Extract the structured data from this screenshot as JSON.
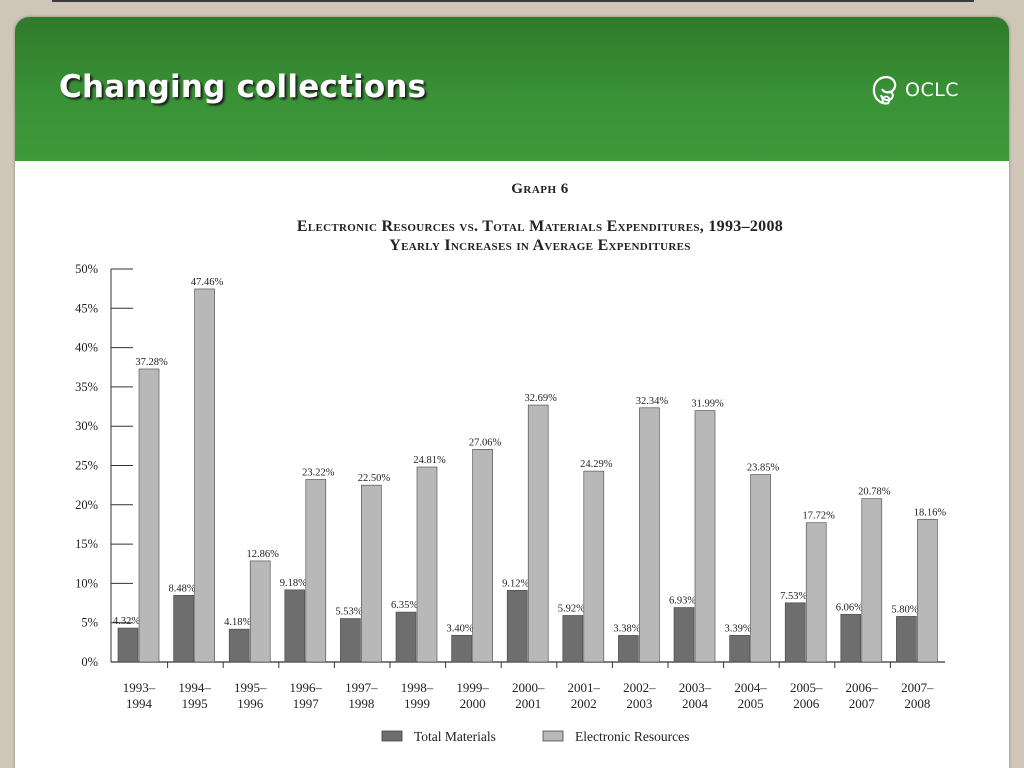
{
  "slide": {
    "title": "Changing collections",
    "logo_text": "OCLC",
    "logo_icon": "oclc-swirl-icon"
  },
  "colors": {
    "header": "#3a9137",
    "total_materials": "#6e6e6e",
    "electronic_resources": "#b8b8b8"
  },
  "chart_data": {
    "type": "bar",
    "graph_label": "Graph 6",
    "title": "Electronic Resources vs. Total Materials Expenditures, 1993–2008",
    "subtitle": "Yearly Increases in Average Expenditures",
    "xlabel": "",
    "ylabel": "",
    "ylim": [
      0,
      50
    ],
    "yticks": [
      "0%",
      "5%",
      "10%",
      "15%",
      "20%",
      "25%",
      "30%",
      "35%",
      "40%",
      "45%",
      "50%"
    ],
    "categories": [
      [
        "1993–",
        "1994"
      ],
      [
        "1994–",
        "1995"
      ],
      [
        "1995–",
        "1996"
      ],
      [
        "1996–",
        "1997"
      ],
      [
        "1997–",
        "1998"
      ],
      [
        "1998–",
        "1999"
      ],
      [
        "1999–",
        "2000"
      ],
      [
        "2000–",
        "2001"
      ],
      [
        "2001–",
        "2002"
      ],
      [
        "2002–",
        "2003"
      ],
      [
        "2003–",
        "2004"
      ],
      [
        "2004–",
        "2005"
      ],
      [
        "2005–",
        "2006"
      ],
      [
        "2006–",
        "2007"
      ],
      [
        "2007–",
        "2008"
      ]
    ],
    "series": [
      {
        "name": "Total Materials",
        "values": [
          4.32,
          8.48,
          4.18,
          9.18,
          5.53,
          6.35,
          3.4,
          9.12,
          5.92,
          3.38,
          6.93,
          3.39,
          7.53,
          6.06,
          5.8
        ],
        "labels": [
          "4.32%",
          "8.48%",
          "4.18%",
          "9.18%",
          "5.53%",
          "6.35%",
          "3.40%",
          "9.12%",
          "5.92%",
          "3.38%",
          "6.93%",
          "3.39%",
          "7.53%",
          "6.06%",
          "5.80%"
        ]
      },
      {
        "name": "Electronic Resources",
        "values": [
          37.28,
          47.46,
          12.86,
          23.22,
          22.5,
          24.81,
          27.06,
          32.69,
          24.29,
          32.34,
          31.99,
          23.85,
          17.72,
          20.78,
          18.16
        ],
        "labels": [
          "37.28%",
          "47.46%",
          "12.86%",
          "23.22%",
          "22.50%",
          "24.81%",
          "27.06%",
          "32.69%",
          "24.29%",
          "32.34%",
          "31.99%",
          "23.85%",
          "17.72%",
          "20.78%",
          "18.16%"
        ]
      }
    ],
    "legend": {
      "position": "bottom-center"
    },
    "grid": false
  }
}
